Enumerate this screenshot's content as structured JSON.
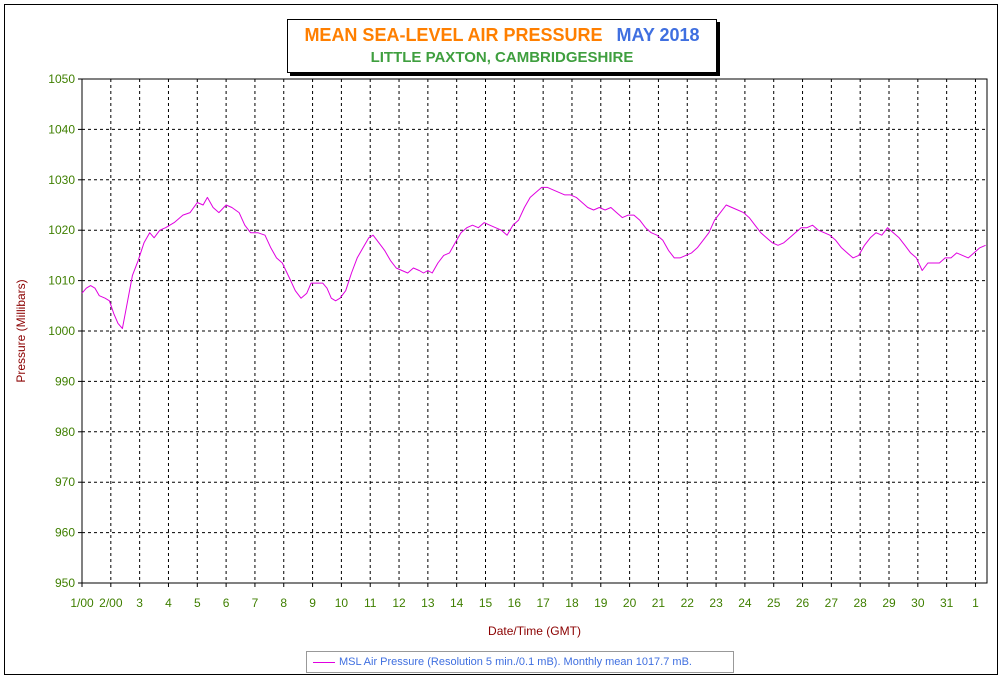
{
  "title": {
    "main": "MEAN SEA-LEVEL AIR PRESSURE",
    "month": "MAY 2018",
    "subtitle": "LITTLE PAXTON, CAMBRIDGESHIRE"
  },
  "legend": {
    "text": "MSL Air Pressure (Resolution 5 min./0.1 mB). Monthly mean 1017.7 mB."
  },
  "colors": {
    "line": "#e000e0",
    "grid": "#000000",
    "ticks": "#3f7f00",
    "axis_labels": "#8b0000"
  },
  "chart_data": {
    "type": "line",
    "xlabel": "Date/Time (GMT)",
    "ylabel": "Pressure (Millibars)",
    "ylim": [
      950,
      1050
    ],
    "xlim": [
      1,
      32.4
    ],
    "yticks": [
      950,
      960,
      970,
      980,
      990,
      1000,
      1010,
      1020,
      1030,
      1040,
      1050
    ],
    "xticks": [
      {
        "x": 1,
        "label": "1/00"
      },
      {
        "x": 2,
        "label": "2/00"
      },
      {
        "x": 3,
        "label": "3"
      },
      {
        "x": 4,
        "label": "4"
      },
      {
        "x": 5,
        "label": "5"
      },
      {
        "x": 6,
        "label": "6"
      },
      {
        "x": 7,
        "label": "7"
      },
      {
        "x": 8,
        "label": "8"
      },
      {
        "x": 9,
        "label": "9"
      },
      {
        "x": 10,
        "label": "10"
      },
      {
        "x": 11,
        "label": "11"
      },
      {
        "x": 12,
        "label": "12"
      },
      {
        "x": 13,
        "label": "13"
      },
      {
        "x": 14,
        "label": "14"
      },
      {
        "x": 15,
        "label": "15"
      },
      {
        "x": 16,
        "label": "16"
      },
      {
        "x": 17,
        "label": "17"
      },
      {
        "x": 18,
        "label": "18"
      },
      {
        "x": 19,
        "label": "19"
      },
      {
        "x": 20,
        "label": "20"
      },
      {
        "x": 21,
        "label": "21"
      },
      {
        "x": 22,
        "label": "22"
      },
      {
        "x": 23,
        "label": "23"
      },
      {
        "x": 24,
        "label": "24"
      },
      {
        "x": 25,
        "label": "25"
      },
      {
        "x": 26,
        "label": "26"
      },
      {
        "x": 27,
        "label": "27"
      },
      {
        "x": 28,
        "label": "28"
      },
      {
        "x": 29,
        "label": "29"
      },
      {
        "x": 30,
        "label": "30"
      },
      {
        "x": 31,
        "label": "31"
      },
      {
        "x": 32,
        "label": "1"
      }
    ],
    "grid": true,
    "series": [
      {
        "name": "MSL Air Pressure (Resolution 5 min./0.1 mB). Monthly mean 1017.7 mB.",
        "points": [
          [
            1.0,
            1007.5
          ],
          [
            1.15,
            1008.5
          ],
          [
            1.3,
            1009.0
          ],
          [
            1.45,
            1008.5
          ],
          [
            1.6,
            1007.0
          ],
          [
            1.8,
            1006.5
          ],
          [
            1.95,
            1006.0
          ],
          [
            2.1,
            1003.5
          ],
          [
            2.25,
            1001.5
          ],
          [
            2.4,
            1000.5
          ],
          [
            2.55,
            1005.0
          ],
          [
            2.75,
            1011.0
          ],
          [
            2.95,
            1014.0
          ],
          [
            3.15,
            1017.5
          ],
          [
            3.35,
            1019.5
          ],
          [
            3.5,
            1018.5
          ],
          [
            3.7,
            1020.0
          ],
          [
            3.9,
            1020.5
          ],
          [
            4.2,
            1021.5
          ],
          [
            4.5,
            1023.0
          ],
          [
            4.75,
            1023.5
          ],
          [
            5.0,
            1025.5
          ],
          [
            5.2,
            1025.0
          ],
          [
            5.35,
            1026.5
          ],
          [
            5.55,
            1024.5
          ],
          [
            5.75,
            1023.5
          ],
          [
            6.0,
            1025.0
          ],
          [
            6.2,
            1024.5
          ],
          [
            6.45,
            1023.5
          ],
          [
            6.65,
            1021.0
          ],
          [
            6.85,
            1019.5
          ],
          [
            7.1,
            1019.5
          ],
          [
            7.35,
            1019.0
          ],
          [
            7.55,
            1016.5
          ],
          [
            7.75,
            1014.5
          ],
          [
            7.95,
            1013.5
          ],
          [
            8.2,
            1010.5
          ],
          [
            8.4,
            1008.0
          ],
          [
            8.6,
            1006.5
          ],
          [
            8.8,
            1007.5
          ],
          [
            8.95,
            1009.5
          ],
          [
            9.15,
            1009.5
          ],
          [
            9.35,
            1009.5
          ],
          [
            9.5,
            1008.5
          ],
          [
            9.65,
            1006.5
          ],
          [
            9.8,
            1006.0
          ],
          [
            9.95,
            1006.5
          ],
          [
            10.15,
            1008.0
          ],
          [
            10.35,
            1011.5
          ],
          [
            10.55,
            1014.5
          ],
          [
            10.75,
            1016.5
          ],
          [
            10.95,
            1018.5
          ],
          [
            11.1,
            1019.0
          ],
          [
            11.3,
            1017.5
          ],
          [
            11.5,
            1016.0
          ],
          [
            11.7,
            1014.0
          ],
          [
            11.9,
            1012.5
          ],
          [
            12.1,
            1012.0
          ],
          [
            12.3,
            1011.5
          ],
          [
            12.5,
            1012.5
          ],
          [
            12.7,
            1012.0
          ],
          [
            12.85,
            1011.5
          ],
          [
            13.0,
            1012.0
          ],
          [
            13.15,
            1011.5
          ],
          [
            13.35,
            1013.5
          ],
          [
            13.55,
            1015.0
          ],
          [
            13.75,
            1015.5
          ],
          [
            13.95,
            1017.5
          ],
          [
            14.15,
            1019.5
          ],
          [
            14.35,
            1020.5
          ],
          [
            14.55,
            1021.0
          ],
          [
            14.75,
            1020.5
          ],
          [
            14.95,
            1021.5
          ],
          [
            15.15,
            1021.0
          ],
          [
            15.35,
            1020.5
          ],
          [
            15.55,
            1020.0
          ],
          [
            15.75,
            1019.0
          ],
          [
            15.95,
            1021.0
          ],
          [
            16.15,
            1022.0
          ],
          [
            16.35,
            1024.5
          ],
          [
            16.55,
            1026.5
          ],
          [
            16.75,
            1027.5
          ],
          [
            16.95,
            1028.5
          ],
          [
            17.15,
            1028.5
          ],
          [
            17.35,
            1028.0
          ],
          [
            17.55,
            1027.5
          ],
          [
            17.75,
            1027.0
          ],
          [
            17.95,
            1027.0
          ],
          [
            18.15,
            1026.5
          ],
          [
            18.35,
            1025.5
          ],
          [
            18.55,
            1024.5
          ],
          [
            18.75,
            1024.0
          ],
          [
            18.95,
            1024.5
          ],
          [
            19.15,
            1024.0
          ],
          [
            19.35,
            1024.5
          ],
          [
            19.55,
            1023.5
          ],
          [
            19.75,
            1022.5
          ],
          [
            19.95,
            1023.0
          ],
          [
            20.15,
            1023.0
          ],
          [
            20.35,
            1022.0
          ],
          [
            20.55,
            1020.5
          ],
          [
            20.75,
            1019.5
          ],
          [
            20.95,
            1019.0
          ],
          [
            21.15,
            1018.0
          ],
          [
            21.35,
            1016.0
          ],
          [
            21.55,
            1014.5
          ],
          [
            21.75,
            1014.5
          ],
          [
            21.95,
            1015.0
          ],
          [
            22.15,
            1015.5
          ],
          [
            22.35,
            1016.5
          ],
          [
            22.55,
            1018.0
          ],
          [
            22.75,
            1019.5
          ],
          [
            22.95,
            1022.0
          ],
          [
            23.15,
            1023.5
          ],
          [
            23.35,
            1025.0
          ],
          [
            23.55,
            1024.5
          ],
          [
            23.75,
            1024.0
          ],
          [
            23.95,
            1023.5
          ],
          [
            24.15,
            1022.5
          ],
          [
            24.35,
            1021.0
          ],
          [
            24.55,
            1019.5
          ],
          [
            24.75,
            1018.5
          ],
          [
            24.95,
            1017.5
          ],
          [
            25.15,
            1017.0
          ],
          [
            25.35,
            1017.5
          ],
          [
            25.55,
            1018.5
          ],
          [
            25.75,
            1019.5
          ],
          [
            25.95,
            1020.5
          ],
          [
            26.15,
            1020.5
          ],
          [
            26.35,
            1021.0
          ],
          [
            26.55,
            1020.0
          ],
          [
            26.75,
            1019.5
          ],
          [
            26.95,
            1019.0
          ],
          [
            27.15,
            1018.0
          ],
          [
            27.35,
            1016.5
          ],
          [
            27.55,
            1015.5
          ],
          [
            27.75,
            1014.5
          ],
          [
            27.95,
            1015.0
          ],
          [
            28.15,
            1017.0
          ],
          [
            28.35,
            1018.5
          ],
          [
            28.55,
            1019.5
          ],
          [
            28.75,
            1019.0
          ],
          [
            28.95,
            1020.5
          ],
          [
            29.15,
            1019.5
          ],
          [
            29.35,
            1018.5
          ],
          [
            29.55,
            1017.0
          ],
          [
            29.75,
            1015.5
          ],
          [
            29.95,
            1014.5
          ],
          [
            30.15,
            1012.0
          ],
          [
            30.35,
            1013.5
          ],
          [
            30.55,
            1013.5
          ],
          [
            30.75,
            1013.5
          ],
          [
            30.95,
            1014.5
          ],
          [
            31.15,
            1014.5
          ],
          [
            31.35,
            1015.5
          ],
          [
            31.55,
            1015.0
          ],
          [
            31.75,
            1014.5
          ],
          [
            31.95,
            1015.5
          ],
          [
            32.15,
            1016.5
          ],
          [
            32.35,
            1017.0
          ]
        ]
      }
    ]
  }
}
